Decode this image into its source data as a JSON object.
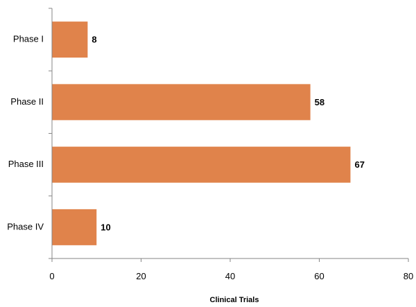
{
  "chart_data": {
    "type": "bar",
    "orientation": "horizontal",
    "categories": [
      "Phase I",
      "Phase II",
      "Phase III",
      "Phase IV"
    ],
    "values": [
      8,
      58,
      67,
      10
    ],
    "title": "",
    "xlabel": "Clinical Trials",
    "ylabel": "",
    "xlim": [
      0,
      80
    ],
    "xticks": [
      0,
      20,
      40,
      60,
      80
    ],
    "xtick_labels": [
      "0",
      "20",
      "40",
      "60",
      "80"
    ],
    "value_labels": [
      "8",
      "58",
      "67",
      "10"
    ],
    "grid": false,
    "legend": "none",
    "bar_color": "#E0834B"
  }
}
